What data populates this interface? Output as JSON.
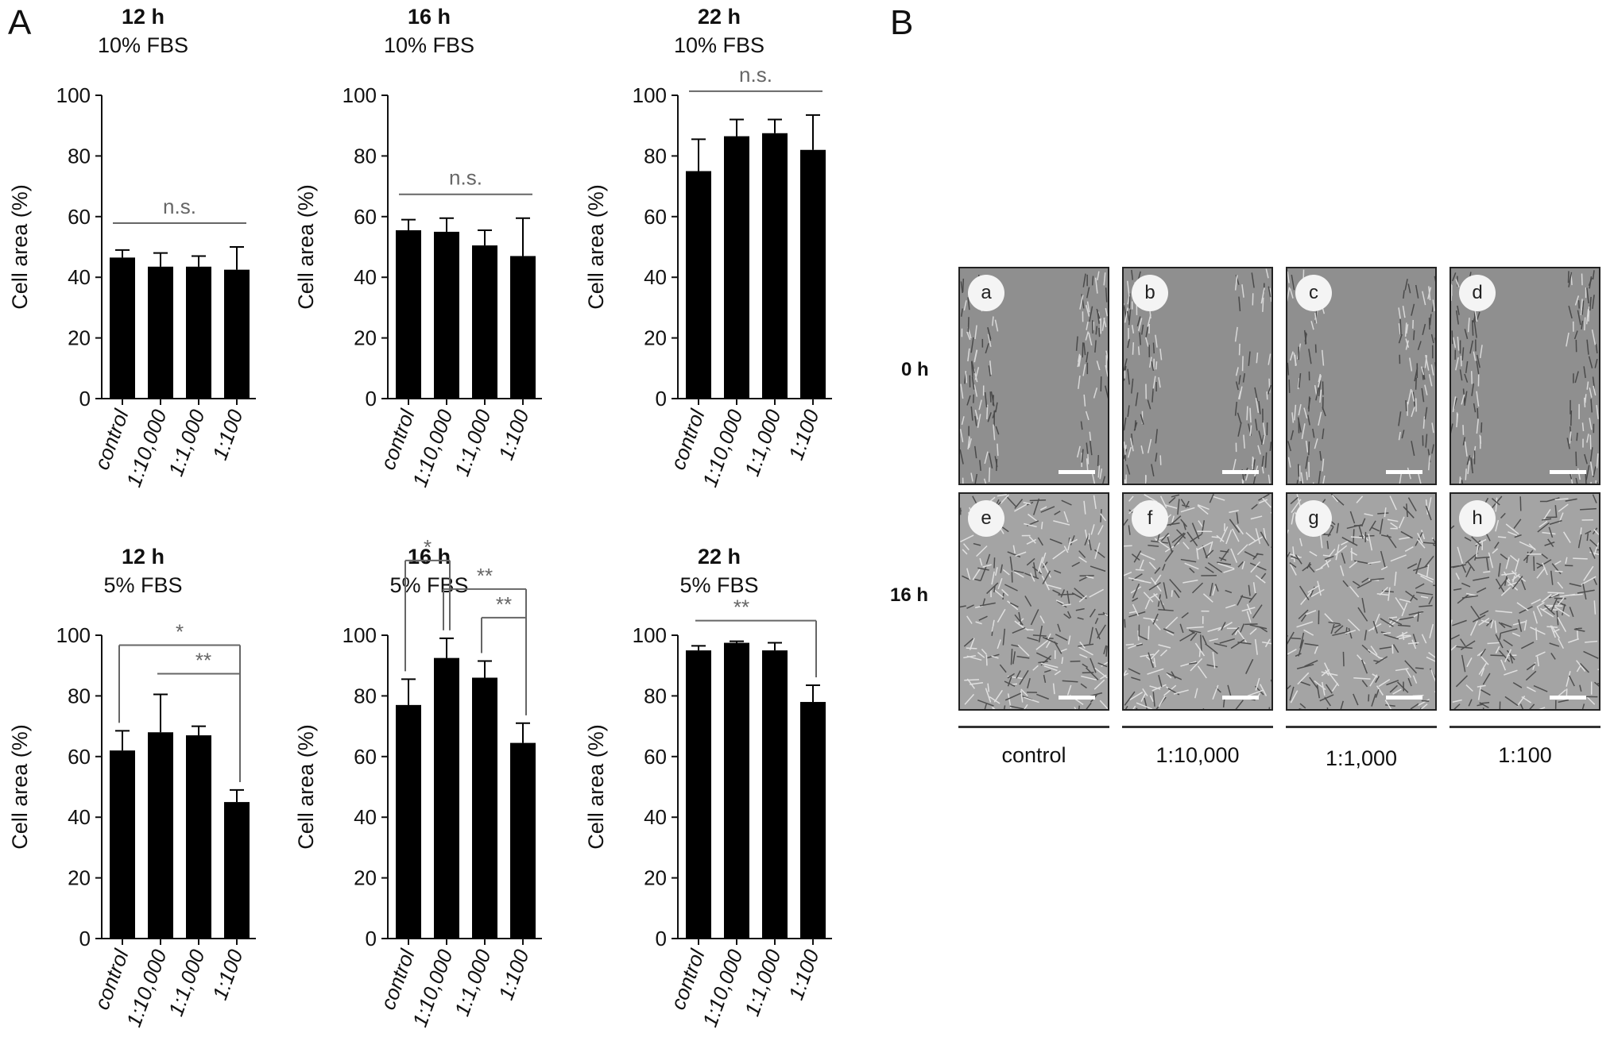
{
  "panels": {
    "a_label": "A",
    "b_label": "B"
  },
  "chart_data": [
    {
      "type": "bar",
      "title": "12 h",
      "subtitle": "10% FBS",
      "ylabel": "Cell area (%)",
      "ylim": [
        0,
        100
      ],
      "yticks": [
        0,
        20,
        40,
        60,
        80,
        100
      ],
      "categories": [
        "control",
        "1:10,000",
        "1:1,000",
        "1:100"
      ],
      "values": [
        46.5,
        43.5,
        43.5,
        42.5
      ],
      "errors": [
        2.5,
        4.5,
        3.5,
        7.5
      ],
      "annotations": [
        {
          "text": "n.s.",
          "from": 0,
          "to": 3
        }
      ]
    },
    {
      "type": "bar",
      "title": "16 h",
      "subtitle": "10% FBS",
      "ylabel": "Cell area (%)",
      "ylim": [
        0,
        100
      ],
      "yticks": [
        0,
        20,
        40,
        60,
        80,
        100
      ],
      "categories": [
        "control",
        "1:10,000",
        "1:1,000",
        "1:100"
      ],
      "values": [
        55.5,
        55,
        50.5,
        47
      ],
      "errors": [
        3.5,
        4.5,
        5,
        12.5
      ],
      "annotations": [
        {
          "text": "n.s.",
          "from": 0,
          "to": 3
        }
      ]
    },
    {
      "type": "bar",
      "title": "22 h",
      "subtitle": "10% FBS",
      "ylabel": "Cell area (%)",
      "ylim": [
        0,
        100
      ],
      "yticks": [
        0,
        20,
        40,
        60,
        80,
        100
      ],
      "categories": [
        "control",
        "1:10,000",
        "1:1,000",
        "1:100"
      ],
      "values": [
        75,
        86.5,
        87.5,
        82
      ],
      "errors": [
        10.5,
        5.5,
        4.5,
        11.5
      ],
      "annotations": [
        {
          "text": "n.s.",
          "from": 0,
          "to": 3
        }
      ]
    },
    {
      "type": "bar",
      "title": "12 h",
      "subtitle": "5% FBS",
      "ylabel": "Cell area (%)",
      "ylim": [
        0,
        100
      ],
      "yticks": [
        0,
        20,
        40,
        60,
        80,
        100
      ],
      "categories": [
        "control",
        "1:10,000",
        "1:1,000",
        "1:100"
      ],
      "values": [
        62,
        68,
        67,
        45
      ],
      "errors": [
        6.5,
        12.5,
        3,
        4
      ],
      "annotations": [
        {
          "text": "*",
          "from": 0,
          "to": 3
        },
        {
          "text": "**",
          "from": 1,
          "to": 3,
          "pivot": 2
        }
      ]
    },
    {
      "type": "bar",
      "title": "16 h",
      "subtitle": "5% FBS",
      "ylabel": "Cell area (%)",
      "ylim": [
        0,
        100
      ],
      "yticks": [
        0,
        20,
        40,
        60,
        80,
        100
      ],
      "categories": [
        "control",
        "1:10,000",
        "1:1,000",
        "1:100"
      ],
      "values": [
        77,
        92.5,
        86,
        64.5
      ],
      "errors": [
        8.5,
        6.5,
        5.5,
        6.5
      ],
      "annotations": [
        {
          "text": "*",
          "from": 0,
          "to": 1
        },
        {
          "text": "**",
          "from": 1,
          "to": 3
        },
        {
          "text": "**",
          "from": 2,
          "to": 3
        }
      ]
    },
    {
      "type": "bar",
      "title": "22 h",
      "subtitle": "5% FBS",
      "ylabel": "Cell area (%)",
      "ylim": [
        0,
        100
      ],
      "yticks": [
        0,
        20,
        40,
        60,
        80,
        100
      ],
      "categories": [
        "control",
        "1:10,000",
        "1:1,000",
        "1:100"
      ],
      "values": [
        95,
        97.5,
        95,
        78
      ],
      "errors": [
        1.5,
        0.5,
        2.5,
        5.5
      ],
      "annotations": [
        {
          "text": "**",
          "from": 0,
          "to": 3,
          "pivot": 1
        }
      ]
    }
  ],
  "micrographs": {
    "rows": [
      "0 h",
      "16 h"
    ],
    "columns": [
      "control",
      "1:10,000",
      "1:1,000",
      "1:100"
    ],
    "badges": [
      "a",
      "b",
      "c",
      "d",
      "e",
      "f",
      "g",
      "h"
    ]
  },
  "colors": {
    "bar": "#000000",
    "axis": "#111111",
    "annotation": "#666666",
    "image_bg": "#9a9a9a"
  }
}
